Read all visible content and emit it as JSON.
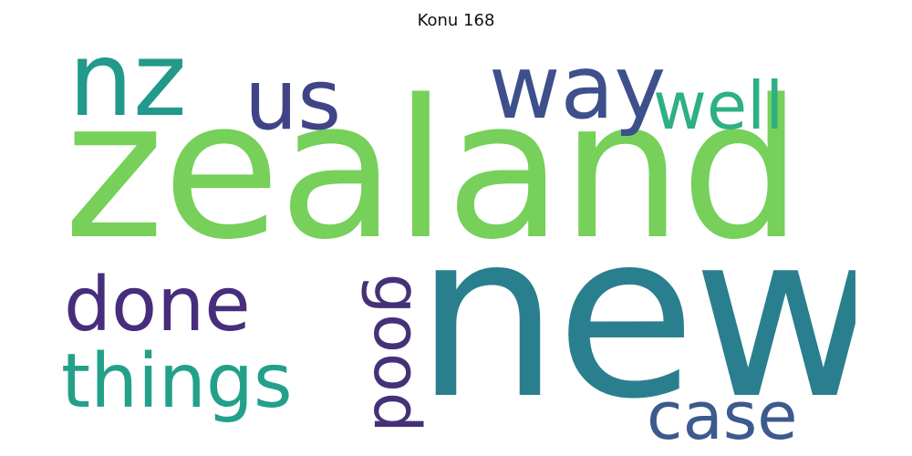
{
  "title": "Konu 168",
  "words": [
    {
      "text": "new",
      "color": "#2a7f8e"
    },
    {
      "text": "zealand",
      "color": "#76d05a"
    },
    {
      "text": "nz",
      "color": "#22998a"
    },
    {
      "text": "way",
      "color": "#3e4f8c"
    },
    {
      "text": "us",
      "color": "#404487"
    },
    {
      "text": "well",
      "color": "#2db083"
    },
    {
      "text": "done",
      "color": "#472d7b"
    },
    {
      "text": "things",
      "color": "#23a08a"
    },
    {
      "text": "good",
      "color": "#453178"
    },
    {
      "text": "case",
      "color": "#3c5a8e"
    }
  ]
}
